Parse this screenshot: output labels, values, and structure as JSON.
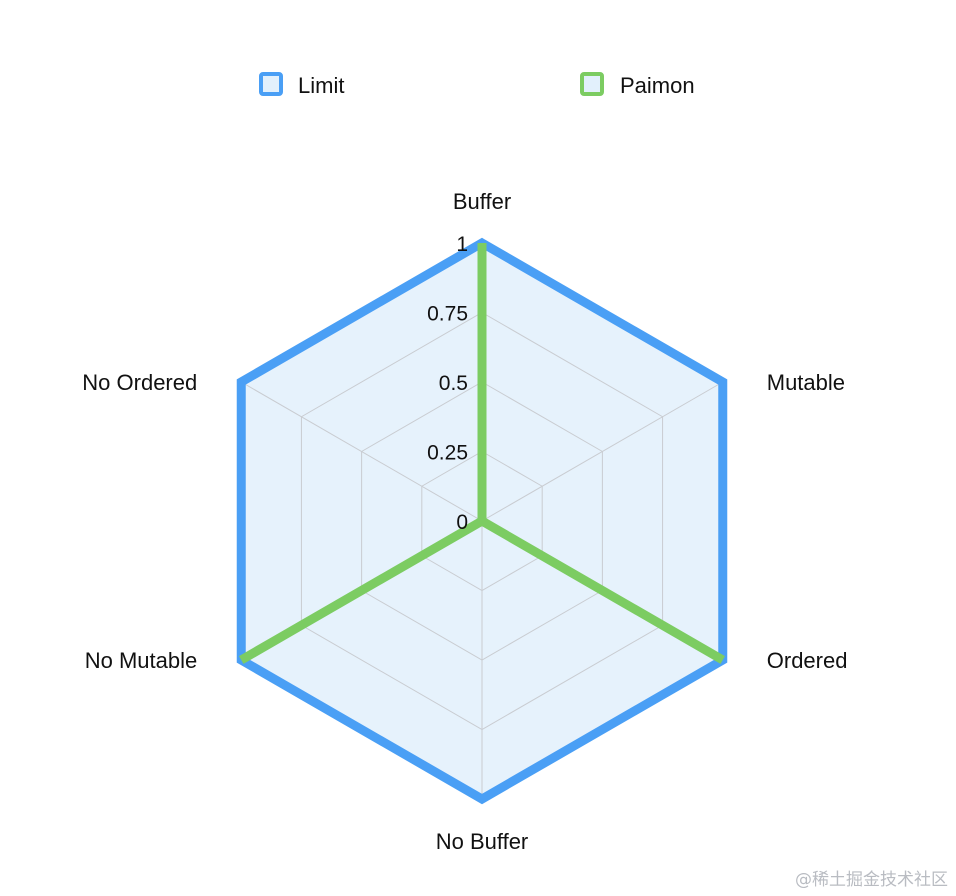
{
  "chart_data": {
    "type": "radar",
    "axes": [
      "Buffer",
      "Mutable",
      "Ordered",
      "No Buffer",
      "No Mutable",
      "No Ordered"
    ],
    "ticks": [
      "0",
      "0.25",
      "0.5",
      "0.75",
      "1"
    ],
    "range": [
      0,
      1
    ],
    "grid": true,
    "legend_position": "top",
    "series": [
      {
        "name": "Limit",
        "values": [
          1,
          1,
          1,
          1,
          1,
          1
        ],
        "color": "#4a9ff5",
        "fill": "#e2f0fc"
      },
      {
        "name": "Paimon",
        "values": [
          1,
          0,
          1,
          0,
          1,
          0
        ],
        "color": "#7ccc62",
        "fill": "#e2f0fc"
      }
    ]
  },
  "watermark": "@稀土掘金技术社区"
}
